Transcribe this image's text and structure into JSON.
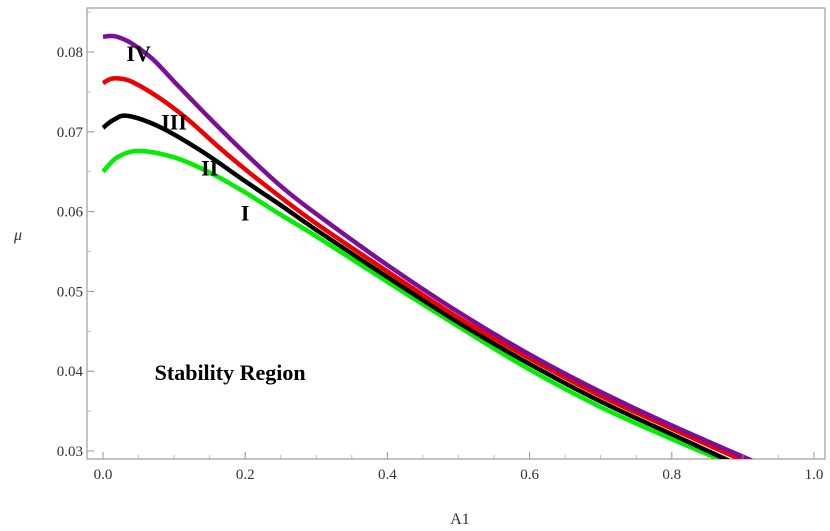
{
  "chart_data": {
    "type": "line",
    "title": "",
    "xlabel": "A1",
    "ylabel": "μ",
    "xlim": [
      0.0,
      1.0
    ],
    "ylim": [
      0.029,
      0.085
    ],
    "grid": false,
    "x_ticks": [
      0.0,
      0.2,
      0.4,
      0.6,
      0.8,
      1.0
    ],
    "x_tick_labels": [
      "0.0",
      "0.2",
      "0.4",
      "0.6",
      "0.8",
      "1.0"
    ],
    "y_ticks": [
      0.03,
      0.04,
      0.05,
      0.06,
      0.07,
      0.08
    ],
    "y_tick_labels": [
      "0.03",
      "0.04",
      "0.05",
      "0.06",
      "0.07",
      "0.08"
    ],
    "series": [
      {
        "color": "#00ee00",
        "x": [
          0.0,
          0.02,
          0.05,
          0.1,
          0.15,
          0.2,
          0.25,
          0.3,
          0.4,
          0.5,
          0.6,
          0.7,
          0.8,
          0.88
        ],
        "y": [
          0.065,
          0.0668,
          0.0676,
          0.0668,
          0.0649,
          0.0624,
          0.0596,
          0.0569,
          0.0512,
          0.0456,
          0.0402,
          0.0355,
          0.0315,
          0.0285
        ]
      },
      {
        "color": "#000000",
        "x": [
          0.0,
          0.015,
          0.035,
          0.08,
          0.14,
          0.2,
          0.25,
          0.3,
          0.4,
          0.5,
          0.6,
          0.7,
          0.8,
          0.88
        ],
        "y": [
          0.0705,
          0.0715,
          0.072,
          0.0706,
          0.0675,
          0.0638,
          0.0608,
          0.0577,
          0.0518,
          0.0461,
          0.0409,
          0.0362,
          0.0321,
          0.0288
        ]
      },
      {
        "color": "#ee0000",
        "x": [
          0.0,
          0.01,
          0.02,
          0.04,
          0.08,
          0.12,
          0.16,
          0.2,
          0.25,
          0.3,
          0.4,
          0.5,
          0.6,
          0.7,
          0.8,
          0.9
        ],
        "y": [
          0.0761,
          0.0766,
          0.0767,
          0.0763,
          0.0742,
          0.0715,
          0.0683,
          0.0653,
          0.0618,
          0.0585,
          0.0525,
          0.0467,
          0.0416,
          0.0369,
          0.0328,
          0.0288
        ]
      },
      {
        "color": "#7b0f99",
        "x": [
          0.0,
          0.01,
          0.02,
          0.04,
          0.07,
          0.1,
          0.15,
          0.2,
          0.25,
          0.3,
          0.4,
          0.5,
          0.6,
          0.7,
          0.8,
          0.92
        ],
        "y": [
          0.0819,
          0.082,
          0.0819,
          0.0811,
          0.0791,
          0.0763,
          0.0717,
          0.0673,
          0.0632,
          0.0597,
          0.0533,
          0.0474,
          0.0421,
          0.0374,
          0.0332,
          0.0285
        ]
      }
    ],
    "curve_labels": [
      {
        "text": "I",
        "x": 0.2,
        "y": 0.0599
      },
      {
        "text": "II",
        "x": 0.15,
        "y": 0.0655
      },
      {
        "text": "III",
        "x": 0.1,
        "y": 0.0713
      },
      {
        "text": "IV",
        "x": 0.05,
        "y": 0.0799
      }
    ],
    "annotation": {
      "text": "Stability Region",
      "x": 0.15,
      "y": 0.0399
    }
  }
}
